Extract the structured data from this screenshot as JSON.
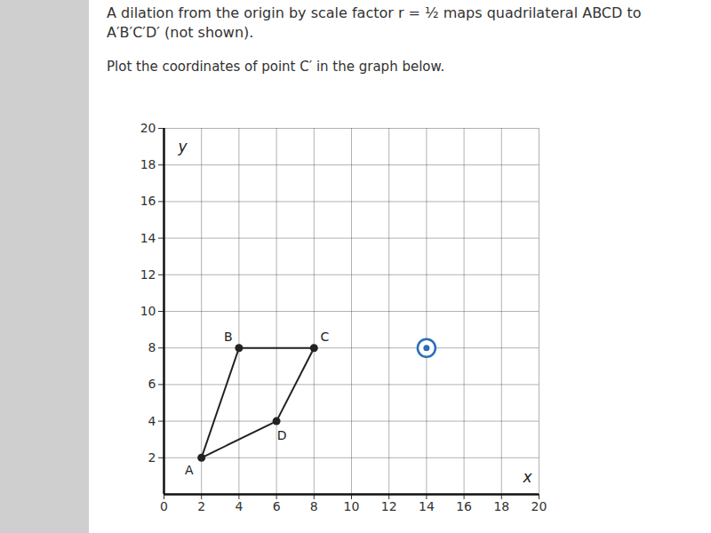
{
  "chart_data": {
    "type": "scatter",
    "title": "A dilation from the origin by scale factor r = ½ maps quadrilateral ABCD to A′B′C′D′ (not shown).",
    "subtitle": "Plot the coordinates of point C′ in the graph below.",
    "x_label": "x",
    "y_label": "y",
    "x": [
      2,
      4,
      8,
      6
    ],
    "values": [
      2,
      8,
      8,
      4
    ],
    "point_labels": [
      "A",
      "B",
      "C",
      "D"
    ],
    "color": "#222222",
    "line_style": "solid",
    "marker": "circle",
    "plotted_point": {
      "x": 14,
      "y": 8,
      "color": "#2a6ebb",
      "marker": "ring"
    },
    "xlim": [
      0,
      20
    ],
    "ylim": [
      0,
      20
    ],
    "xticks": [
      0,
      2,
      4,
      6,
      8,
      10,
      12,
      14,
      16,
      18,
      20
    ],
    "yticks": [
      2,
      4,
      6,
      8,
      10,
      12,
      14,
      16,
      18,
      20
    ],
    "grid": true
  }
}
